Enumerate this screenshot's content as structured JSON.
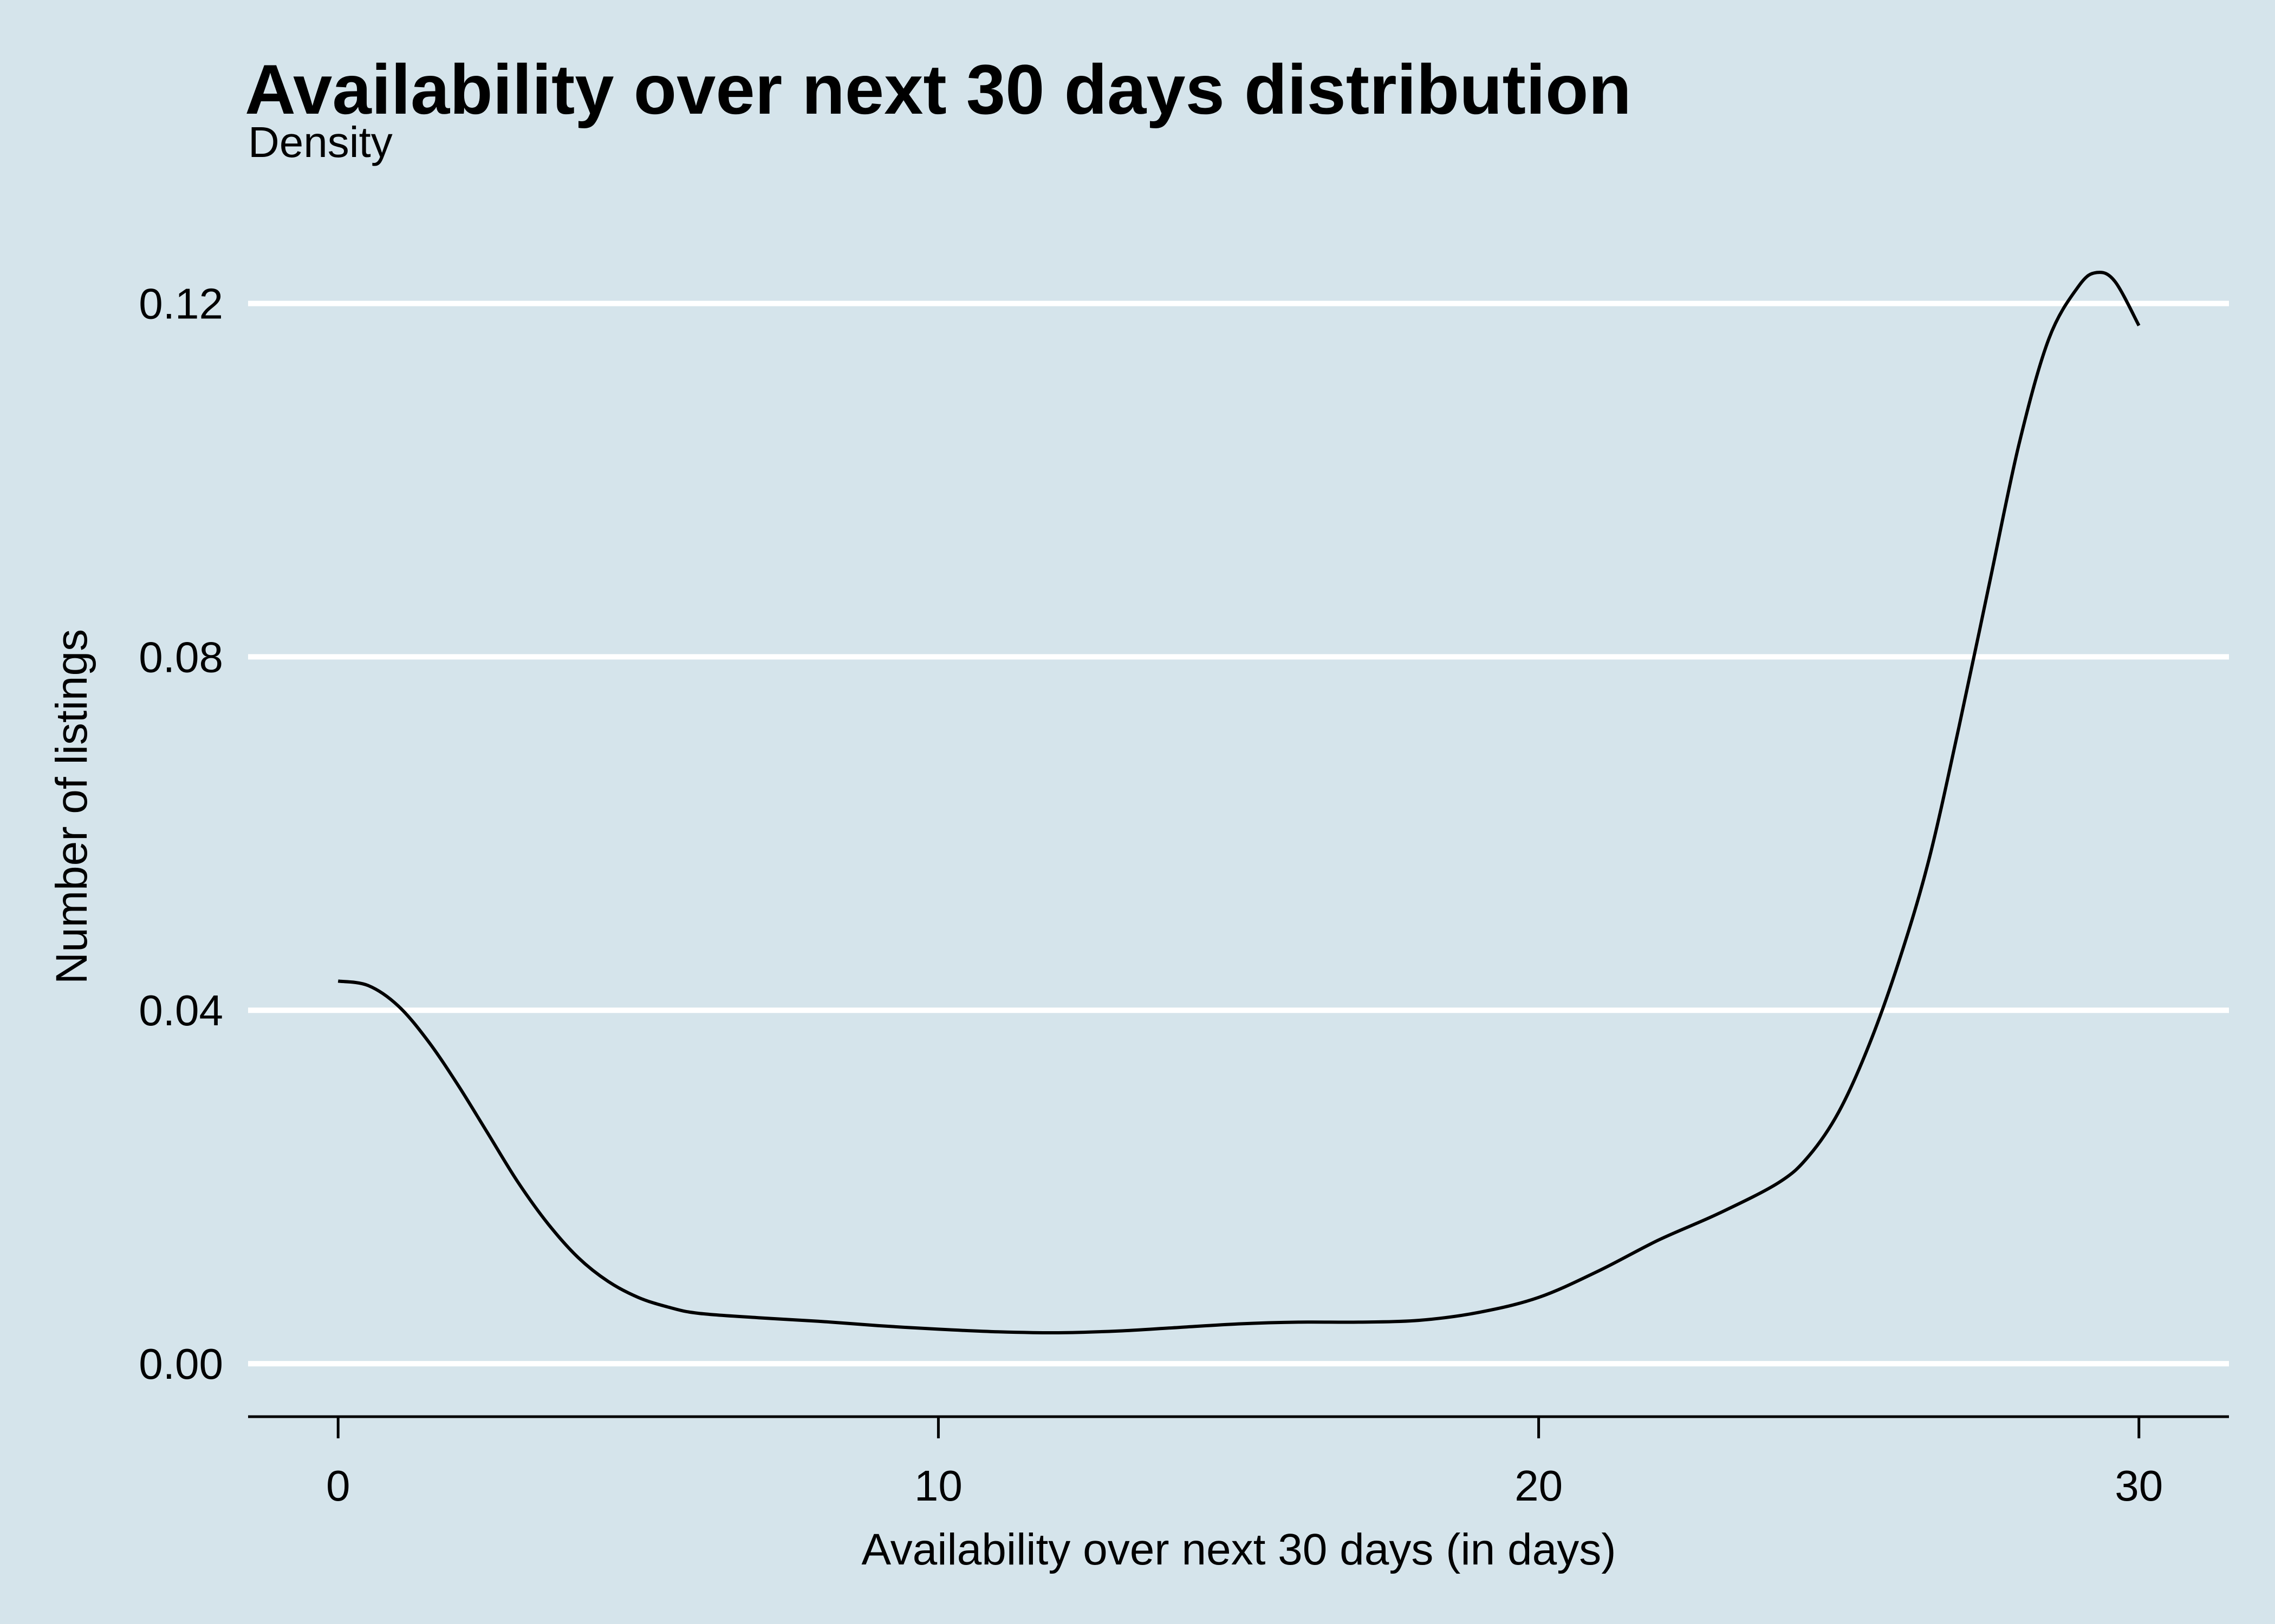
{
  "chart_data": {
    "type": "line",
    "title": "Availability over next 30 days distribution",
    "subtitle": "Density",
    "xlabel": "Availability over next 30 days (in days)",
    "ylabel": "Number of listings",
    "xlim": [
      -1.5,
      31.5
    ],
    "ylim": [
      -0.006,
      0.128
    ],
    "x_ticks": [
      0,
      10,
      20,
      30
    ],
    "x_tick_labels": [
      "0",
      "10",
      "20",
      "30"
    ],
    "y_ticks": [
      0,
      0.04,
      0.08,
      0.12
    ],
    "y_tick_labels": [
      "0.00",
      "0.04",
      "0.08",
      "0.12"
    ],
    "grid": "horizontal-major",
    "series": [
      {
        "x": [
          0,
          0.5,
          1,
          1.5,
          2,
          2.5,
          3,
          3.5,
          4,
          4.5,
          5,
          5.5,
          6,
          7,
          8,
          9,
          10,
          11,
          12,
          13,
          14,
          15,
          16,
          17,
          18,
          19,
          20,
          21,
          22,
          23,
          24,
          24.5,
          25,
          25.5,
          26,
          26.5,
          27,
          27.5,
          28,
          28.5,
          29,
          29.3,
          29.6,
          30
        ],
        "y": [
          0.0433,
          0.0428,
          0.0405,
          0.0365,
          0.0315,
          0.026,
          0.0205,
          0.0158,
          0.012,
          0.0093,
          0.0075,
          0.0064,
          0.0057,
          0.0052,
          0.0048,
          0.0043,
          0.0039,
          0.0036,
          0.0035,
          0.0037,
          0.0041,
          0.0045,
          0.0047,
          0.0047,
          0.0049,
          0.0058,
          0.0075,
          0.0105,
          0.014,
          0.017,
          0.0205,
          0.0235,
          0.0285,
          0.036,
          0.0455,
          0.057,
          0.072,
          0.088,
          0.104,
          0.116,
          0.122,
          0.1235,
          0.1225,
          0.1175
        ]
      }
    ]
  }
}
